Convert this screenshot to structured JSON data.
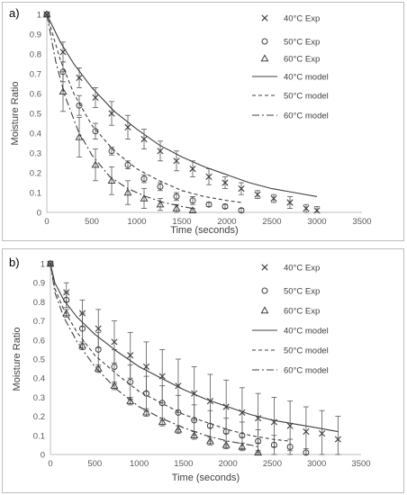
{
  "chart_data": [
    {
      "type": "scatter",
      "panel_label": "a)",
      "xlabel": "Time (seconds)",
      "ylabel": "Moisture Ratio",
      "xlim": [
        0,
        3500
      ],
      "ylim": [
        0,
        1
      ],
      "x_ticks": [
        0,
        500,
        1000,
        1500,
        2000,
        2500,
        3000,
        3500
      ],
      "y_ticks": [
        0,
        0.1,
        0.2,
        0.3,
        0.4,
        0.5,
        0.6,
        0.7,
        0.8,
        0.9,
        1
      ],
      "grid": false,
      "legend_position": "right",
      "series": [
        {
          "name": "40°C Exp",
          "kind": "points",
          "marker": "x",
          "x": [
            0,
            180,
            360,
            540,
            720,
            900,
            1080,
            1260,
            1440,
            1620,
            1800,
            1980,
            2160,
            2340,
            2520,
            2700,
            2880,
            3000
          ],
          "y": [
            1.0,
            0.81,
            0.68,
            0.58,
            0.5,
            0.43,
            0.37,
            0.31,
            0.26,
            0.22,
            0.18,
            0.15,
            0.12,
            0.09,
            0.07,
            0.05,
            0.02,
            0.01
          ],
          "err": [
            0,
            0.05,
            0.05,
            0.05,
            0.06,
            0.06,
            0.05,
            0.05,
            0.05,
            0.04,
            0.04,
            0.03,
            0.03,
            0.02,
            0.02,
            0.03,
            0.02,
            0.02
          ]
        },
        {
          "name": "50°C Exp",
          "kind": "points",
          "marker": "o",
          "x": [
            0,
            180,
            360,
            540,
            720,
            900,
            1080,
            1260,
            1440,
            1620,
            1800,
            1980,
            2160
          ],
          "y": [
            1.0,
            0.71,
            0.54,
            0.41,
            0.31,
            0.24,
            0.17,
            0.13,
            0.08,
            0.06,
            0.04,
            0.03,
            0.01
          ],
          "err": [
            0,
            0.05,
            0.05,
            0.04,
            0.02,
            0.02,
            0.02,
            0.02,
            0.02,
            0.02,
            0.01,
            0.01,
            0.01
          ]
        },
        {
          "name": "60°C Exp",
          "kind": "points",
          "marker": "^",
          "x": [
            0,
            180,
            360,
            540,
            720,
            900,
            1080,
            1260,
            1440,
            1620
          ],
          "y": [
            1.0,
            0.61,
            0.38,
            0.24,
            0.16,
            0.1,
            0.07,
            0.04,
            0.02,
            0.01
          ],
          "err": [
            0,
            0.1,
            0.1,
            0.08,
            0.07,
            0.06,
            0.05,
            0.03,
            0.02,
            0.01
          ]
        },
        {
          "name": "40°C model",
          "kind": "line",
          "dash": "solid",
          "x": [
            0,
            150,
            300,
            500,
            750,
            1000,
            1250,
            1500,
            1750,
            2000,
            2250,
            2500,
            2750,
            3000
          ],
          "y": [
            1.0,
            0.86,
            0.75,
            0.63,
            0.51,
            0.42,
            0.34,
            0.28,
            0.23,
            0.19,
            0.15,
            0.12,
            0.1,
            0.08
          ]
        },
        {
          "name": "50°C model",
          "kind": "line",
          "dash": "dash",
          "x": [
            0,
            150,
            300,
            500,
            750,
            1000,
            1250,
            1500,
            1750,
            2000,
            2160
          ],
          "y": [
            1.0,
            0.77,
            0.6,
            0.44,
            0.31,
            0.22,
            0.16,
            0.11,
            0.08,
            0.06,
            0.05
          ]
        },
        {
          "name": "60°C model",
          "kind": "line",
          "dash": "dashdot",
          "x": [
            0,
            100,
            200,
            350,
            500,
            700,
            900,
            1100,
            1300,
            1500,
            1620
          ],
          "y": [
            1.0,
            0.76,
            0.59,
            0.41,
            0.29,
            0.18,
            0.12,
            0.08,
            0.05,
            0.03,
            0.02
          ]
        }
      ]
    },
    {
      "type": "scatter",
      "panel_label": "b)",
      "xlabel": "Time (seconds)",
      "ylabel": "Moisture Ratio",
      "xlim": [
        0,
        3500
      ],
      "ylim": [
        0,
        1
      ],
      "x_ticks": [
        0,
        500,
        1000,
        1500,
        2000,
        2500,
        3000,
        3500
      ],
      "y_ticks": [
        0,
        0.1,
        0.2,
        0.3,
        0.4,
        0.5,
        0.6,
        0.7,
        0.8,
        0.9,
        1
      ],
      "grid": false,
      "legend_position": "right",
      "series": [
        {
          "name": "40°C Exp",
          "kind": "points",
          "marker": "x",
          "x": [
            0,
            180,
            360,
            540,
            720,
            900,
            1080,
            1260,
            1440,
            1620,
            1800,
            1980,
            2160,
            2340,
            2520,
            2700,
            2880,
            3060,
            3240
          ],
          "y": [
            1.0,
            0.85,
            0.74,
            0.66,
            0.59,
            0.52,
            0.46,
            0.41,
            0.36,
            0.32,
            0.28,
            0.25,
            0.22,
            0.19,
            0.17,
            0.15,
            0.12,
            0.11,
            0.08
          ],
          "err": [
            0,
            0.05,
            0.07,
            0.1,
            0.11,
            0.12,
            0.13,
            0.14,
            0.14,
            0.14,
            0.14,
            0.14,
            0.13,
            0.13,
            0.13,
            0.13,
            0.13,
            0.12,
            0.12
          ]
        },
        {
          "name": "50°C Exp",
          "kind": "points",
          "marker": "o",
          "x": [
            0,
            180,
            360,
            540,
            720,
            900,
            1080,
            1260,
            1440,
            1620,
            1800,
            1980,
            2160,
            2340,
            2520,
            2700,
            2880
          ],
          "y": [
            1.0,
            0.81,
            0.66,
            0.55,
            0.46,
            0.38,
            0.32,
            0.27,
            0.22,
            0.18,
            0.15,
            0.12,
            0.1,
            0.07,
            0.05,
            0.04,
            0.01
          ],
          "err": [
            0,
            0.04,
            0.08,
            0.09,
            0.09,
            0.09,
            0.09,
            0.09,
            0.09,
            0.08,
            0.08,
            0.07,
            0.07,
            0.06,
            0.05,
            0.04,
            0.02
          ]
        },
        {
          "name": "60°C Exp",
          "kind": "points",
          "marker": "^",
          "x": [
            0,
            180,
            360,
            540,
            720,
            900,
            1080,
            1260,
            1440,
            1620,
            1800,
            1980,
            2160,
            2340
          ],
          "y": [
            1.0,
            0.74,
            0.57,
            0.45,
            0.36,
            0.28,
            0.22,
            0.17,
            0.13,
            0.1,
            0.07,
            0.05,
            0.04,
            0.01
          ],
          "err": [
            0,
            0.02,
            0.02,
            0.02,
            0.02,
            0.02,
            0.02,
            0.02,
            0.02,
            0.02,
            0.02,
            0.02,
            0.02,
            0.01
          ]
        },
        {
          "name": "40°C model",
          "kind": "line",
          "dash": "solid",
          "x": [
            0,
            50,
            150,
            300,
            500,
            750,
            1000,
            1250,
            1500,
            1750,
            2000,
            2250,
            2500,
            2750,
            3000,
            3240
          ],
          "y": [
            1.0,
            0.9,
            0.81,
            0.72,
            0.63,
            0.54,
            0.46,
            0.4,
            0.34,
            0.29,
            0.25,
            0.21,
            0.18,
            0.16,
            0.14,
            0.12
          ]
        },
        {
          "name": "50°C model",
          "kind": "line",
          "dash": "dash",
          "x": [
            0,
            50,
            150,
            300,
            500,
            750,
            1000,
            1250,
            1500,
            1750,
            2000,
            2250,
            2500,
            2700
          ],
          "y": [
            1.0,
            0.87,
            0.76,
            0.64,
            0.52,
            0.42,
            0.33,
            0.27,
            0.21,
            0.17,
            0.13,
            0.1,
            0.08,
            0.07
          ]
        },
        {
          "name": "60°C model",
          "kind": "line",
          "dash": "dashdot",
          "x": [
            0,
            50,
            150,
            300,
            500,
            750,
            1000,
            1250,
            1500,
            1750,
            2000,
            2250,
            2340
          ],
          "y": [
            1.0,
            0.85,
            0.72,
            0.59,
            0.46,
            0.34,
            0.25,
            0.19,
            0.14,
            0.1,
            0.07,
            0.05,
            0.04
          ]
        }
      ]
    }
  ]
}
